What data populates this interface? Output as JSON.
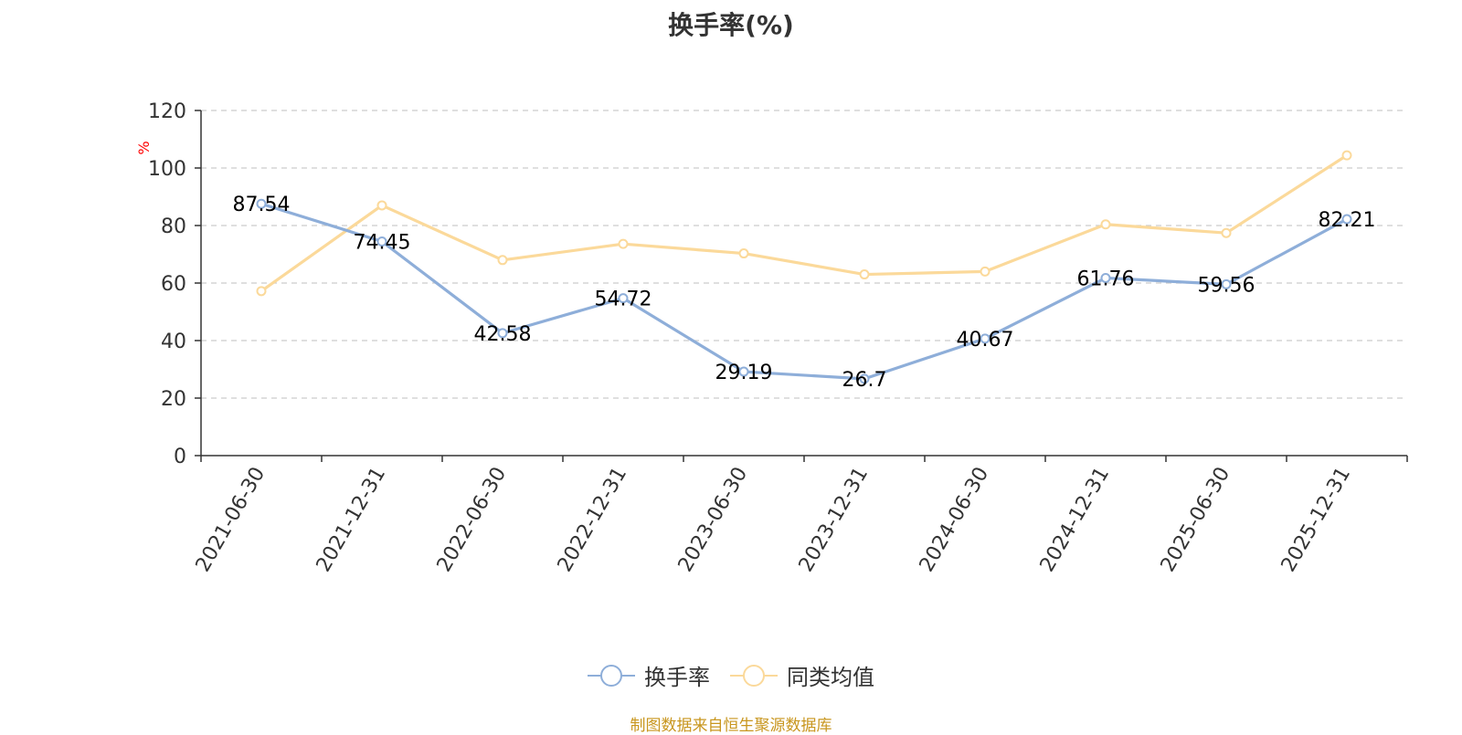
{
  "chart_data": {
    "type": "line",
    "title": "换手率(%)",
    "ylabel": "%",
    "xlabel": "",
    "ylim": [
      0,
      120
    ],
    "yticks": [
      0,
      20,
      40,
      60,
      80,
      100,
      120
    ],
    "grid": true,
    "legend_position": "bottom-center",
    "categories": [
      "2021-06-30",
      "2021-12-31",
      "2022-06-30",
      "2022-12-31",
      "2023-06-30",
      "2023-12-31",
      "2024-06-30",
      "2024-12-31",
      "2025-06-30",
      "2025-12-31"
    ],
    "series": [
      {
        "name": "换手率",
        "color": "#8eaed9",
        "values": [
          87.54,
          74.45,
          42.58,
          54.72,
          29.19,
          26.7,
          40.67,
          61.76,
          59.56,
          82.21
        ],
        "labels": [
          "87.54",
          "74.45",
          "42.58",
          "54.72",
          "29.19",
          "26.7",
          "40.67",
          "61.76",
          "59.56",
          "82.21"
        ],
        "show_labels": true
      },
      {
        "name": "同类均值",
        "color": "#fbd99a",
        "values": [
          57.2,
          87.0,
          68.0,
          73.6,
          70.3,
          63.0,
          64.0,
          80.4,
          77.4,
          104.4
        ],
        "show_labels": false
      }
    ]
  },
  "source_note": "制图数据来自恒生聚源数据库",
  "colors": {
    "title": "#333333",
    "axis": "#333333",
    "grid": "#cccccc",
    "ylabel": "#ff0000",
    "source": "#c8961e"
  }
}
